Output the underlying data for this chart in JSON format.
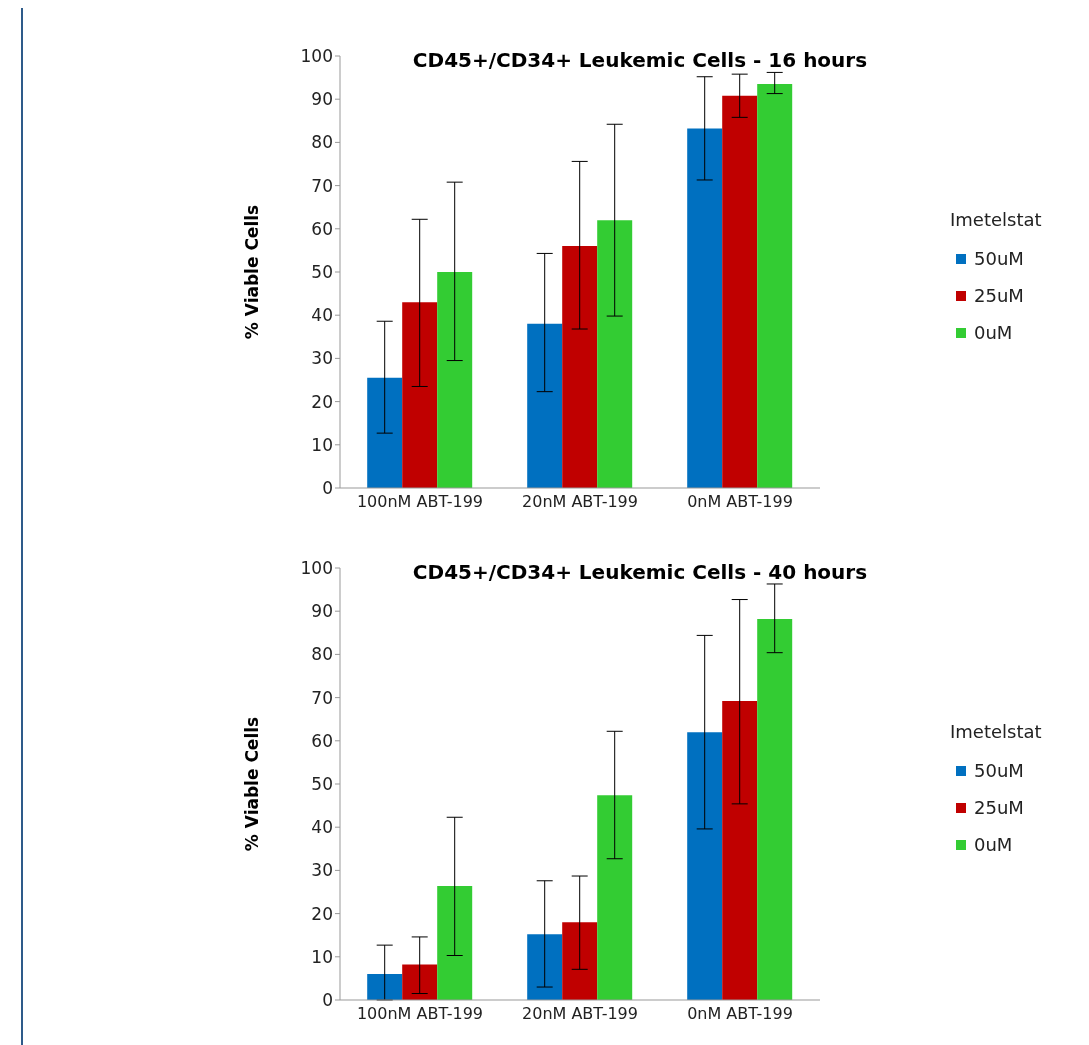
{
  "chart_data": [
    {
      "type": "bar",
      "title": "CD45+/CD34+ Leukemic Cells - 16 hours",
      "ylabel": "% Viable Cells",
      "legend_title": "Imetelstat",
      "legend": "right",
      "categories": [
        "100nM ABT-199",
        "20nM ABT-199",
        "0nM ABT-199"
      ],
      "ylim": [
        0,
        100
      ],
      "yticks": [
        0,
        10,
        20,
        30,
        40,
        50,
        60,
        70,
        80,
        90,
        100
      ],
      "series": [
        {
          "name": "50uM",
          "color": "#0070c0",
          "values": [
            25.5,
            38,
            83.2
          ],
          "errors": [
            [
              12.7,
              38.6
            ],
            [
              22.3,
              54.3
            ],
            [
              71.3,
              95.2
            ]
          ]
        },
        {
          "name": "25uM",
          "color": "#c00000",
          "values": [
            43,
            56,
            90.8
          ],
          "errors": [
            [
              23.5,
              62.2
            ],
            [
              36.8,
              75.6
            ],
            [
              85.8,
              95.8
            ]
          ]
        },
        {
          "name": "0uM",
          "color": "#33cc33",
          "values": [
            50,
            62,
            93.5
          ],
          "errors": [
            [
              29.5,
              70.8
            ],
            [
              39.8,
              84.2
            ],
            [
              91.3,
              96.2
            ]
          ]
        }
      ]
    },
    {
      "type": "bar",
      "title": "CD45+/CD34+ Leukemic Cells - 40 hours",
      "ylabel": "% Viable Cells",
      "legend_title": "Imetelstat",
      "legend": "right",
      "categories": [
        "100nM ABT-199",
        "20nM ABT-199",
        "0nM ABT-199"
      ],
      "ylim": [
        0,
        100
      ],
      "yticks": [
        0,
        10,
        20,
        30,
        40,
        50,
        60,
        70,
        80,
        90,
        100
      ],
      "series": [
        {
          "name": "50uM",
          "color": "#0070c0",
          "values": [
            6,
            15.2,
            62
          ],
          "errors": [
            [
              0,
              12.7
            ],
            [
              3,
              27.6
            ],
            [
              39.6,
              84.4
            ]
          ]
        },
        {
          "name": "25uM",
          "color": "#c00000",
          "values": [
            8.2,
            18,
            69.2
          ],
          "errors": [
            [
              1.5,
              14.6
            ],
            [
              7.1,
              28.7
            ],
            [
              45.4,
              92.7
            ]
          ]
        },
        {
          "name": "0uM",
          "color": "#33cc33",
          "values": [
            26.4,
            47.4,
            88.2
          ],
          "errors": [
            [
              10.3,
              42.3
            ],
            [
              32.7,
              62.2
            ],
            [
              80.4,
              96.3
            ]
          ]
        }
      ]
    }
  ]
}
